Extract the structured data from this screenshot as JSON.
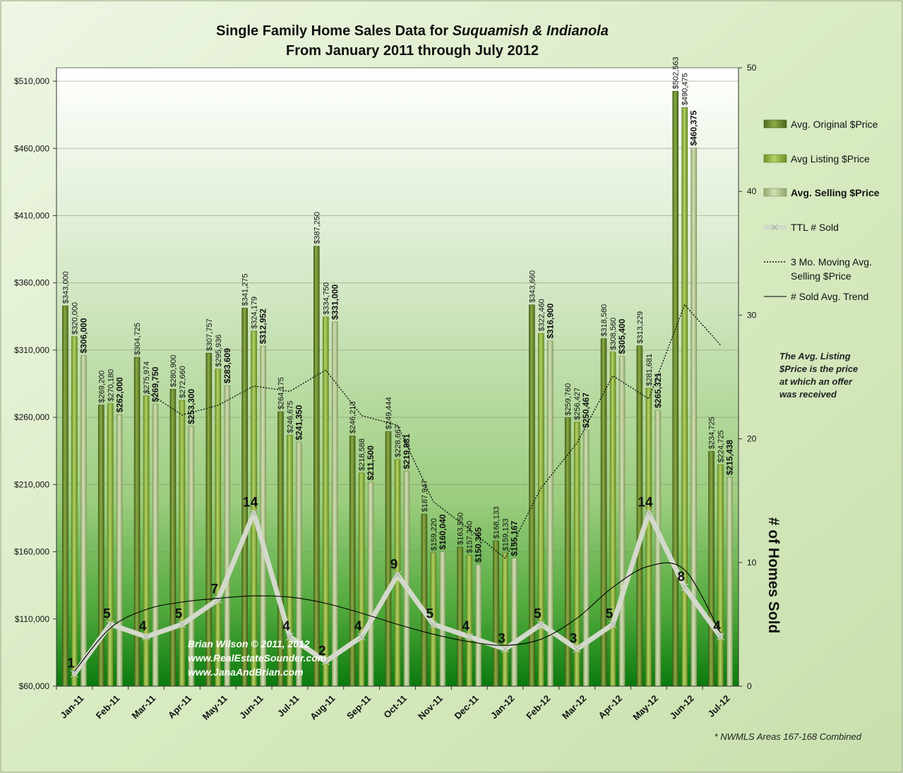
{
  "chart_data": {
    "type": "bar",
    "title_line1_prefix": "Single Family Home Sales Data for ",
    "title_line1_italic": "Suquamish & Indianola",
    "title_line2": "From January 2011 through July 2012",
    "categories": [
      "Jan-11",
      "Feb-11",
      "Mar-11",
      "Apr-11",
      "May-11",
      "Jun-11",
      "Jul-11",
      "Aug-11",
      "Sep-11",
      "Oct-11",
      "Nov-11",
      "Dec-11",
      "Jan-12",
      "Feb-12",
      "Mar-12",
      "Apr-12",
      "May-12",
      "Jun-12",
      "Jul-12"
    ],
    "ylim": [
      60000,
      520000
    ],
    "y_ticks": [
      60000,
      110000,
      160000,
      210000,
      260000,
      310000,
      360000,
      410000,
      460000,
      510000
    ],
    "y_tick_labels": [
      "$60,000",
      "$110,000",
      "$160,000",
      "$210,000",
      "$260,000",
      "$310,000",
      "$360,000",
      "$410,000",
      "$460,000",
      "$510,000"
    ],
    "y2lim": [
      0,
      50
    ],
    "y2_ticks": [
      0,
      10,
      20,
      30,
      40,
      50
    ],
    "y2_tick_labels": [
      "0",
      "10",
      "20",
      "30",
      "40",
      "50"
    ],
    "y2label": "# of Homes Sold",
    "series": [
      {
        "name": "Avg. Original $Price",
        "values": [
          343000,
          269200,
          304725,
          280900,
          307757,
          341275,
          264175,
          387250,
          246213,
          249444,
          187947,
          163550,
          168133,
          343660,
          259760,
          318580,
          313229,
          502563,
          234725
        ],
        "labels": [
          "$343,000",
          "$269,200",
          "$304,725",
          "$280,900",
          "$307,757",
          "$341,275",
          "$264,175",
          "$387,250",
          "$246,213",
          "$249,444",
          "$187,947",
          "$163,550",
          "$168,133",
          "$343,660",
          "$259,760",
          "$318,580",
          "$313,229",
          "$502,563",
          "$234,725"
        ]
      },
      {
        "name": "Avg Listing $Price",
        "values": [
          320000,
          270180,
          275974,
          272660,
          295936,
          324179,
          246675,
          334750,
          218588,
          228667,
          159220,
          157340,
          159133,
          322460,
          256427,
          308560,
          281681,
          490475,
          224725
        ],
        "labels": [
          "$320,000",
          "$270,180",
          "$275,974",
          "$272,660",
          "$295,936",
          "$324,179",
          "$246,675",
          "$334,750",
          "$218,588",
          "$228,667",
          "$159,220",
          "$157,340",
          "$159,133",
          "$322,460",
          "$256,427",
          "$308,560",
          "$281,681",
          "$490,475",
          "$224,725"
        ]
      },
      {
        "name": "Avg. Selling $Price",
        "values": [
          306000,
          262000,
          269750,
          253300,
          283609,
          312952,
          241350,
          331000,
          211500,
          219881,
          160040,
          150365,
          155167,
          316900,
          250467,
          305400,
          265321,
          460375,
          215438
        ],
        "labels": [
          "$306,000",
          "$262,000",
          "$269,750",
          "$253,300",
          "$283,609",
          "$312,952",
          "$241,350",
          "$331,000",
          "$211,500",
          "$219,881",
          "$160,040",
          "$150,365",
          "$155,167",
          "$316,900",
          "$250,467",
          "$305,400",
          "$265,321",
          "$460,375",
          "$215,438"
        ]
      },
      {
        "name": "TTL # Sold",
        "values": [
          1,
          5,
          4,
          5,
          7,
          14,
          4,
          2,
          4,
          9,
          5,
          4,
          3,
          5,
          3,
          5,
          14,
          8,
          4
        ],
        "labels": [
          "1",
          "5",
          "4",
          "5",
          "7",
          "14",
          "4",
          "2",
          "4",
          "9",
          "5",
          "4",
          "3",
          "5",
          "3",
          "5",
          "14",
          "8",
          "4"
        ]
      },
      {
        "name": "3 Mo. Moving Avg. Selling $Price",
        "values": [
          null,
          null,
          279250,
          261683,
          268886,
          283287,
          279304,
          295101,
          261283,
          254127,
          197140,
          176762,
          155191,
          207477,
          240845,
          290922,
          273729,
          343699,
          313711
        ]
      },
      {
        "name": "# Sold Avg. Trend",
        "values": [
          1.2,
          4.7,
          6.2,
          6.8,
          7.1,
          7.3,
          7.2,
          6.7,
          5.9,
          5.0,
          4.2,
          3.6,
          3.3,
          3.8,
          5.5,
          8.0,
          9.7,
          9.4,
          4.3
        ]
      }
    ],
    "legend": {
      "position": "right",
      "items": [
        "Avg. Original $Price",
        "Avg Listing $Price",
        "Avg. Selling $Price",
        "TTL # Sold",
        "3 Mo. Moving Avg.",
        "Selling $Price",
        "# Sold Avg. Trend"
      ]
    },
    "annotation_note": [
      "The Avg. Listing",
      "$Price is the price",
      "at which an offer",
      "was received"
    ],
    "watermark": [
      "Brian Wilson  © 2011, 2012",
      "www.RealEstateSounder.com",
      "www.JanaAndBrian.com"
    ],
    "footnote": "* NWMLS Areas 167-168 Combined",
    "colors": {
      "background": "#d9ebc3",
      "plot_top": "#ffffff",
      "plot_bottom": "#0a7a0a",
      "bar_original": "#6e8e2e",
      "bar_listing": "#8fb43e",
      "bar_selling": "#b3c987",
      "sold_line": "#d6ddd0",
      "trend_line": "#000000"
    }
  }
}
